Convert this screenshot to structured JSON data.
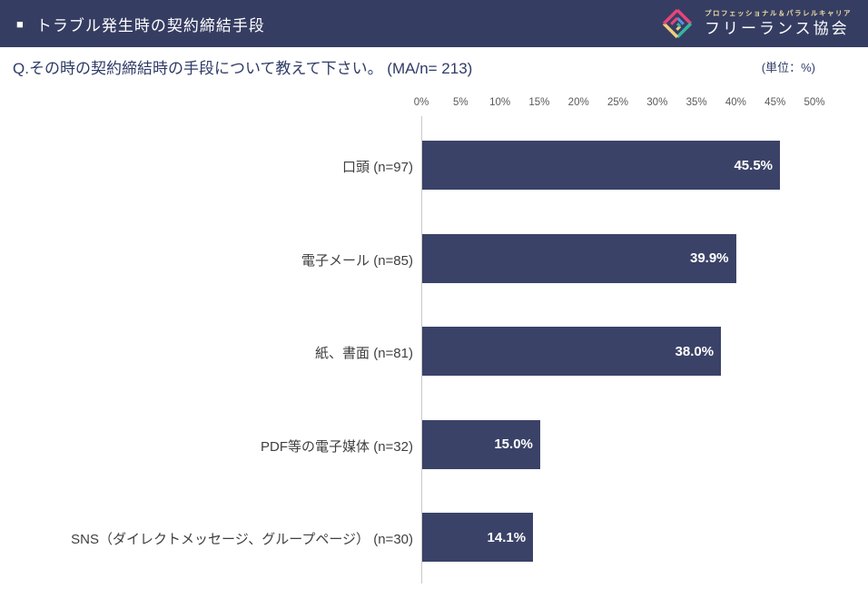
{
  "header": {
    "bullet": "■",
    "title": "トラブル発生時の契約締結手段",
    "logo": {
      "tagline": "プロフェッショナル＆パラレルキャリア",
      "name": "フリーランス協会"
    }
  },
  "question": {
    "text": "Q.その時の契約締結時の手段について教えて下さい。 (MA/n= 213)",
    "unit_note": "(単位：%)"
  },
  "colors": {
    "header_bg": "#363D62",
    "bar": "#3B4268",
    "question_text": "#2F3B67",
    "tick_text": "#595959",
    "category_text": "#3F3F3F",
    "value_text": "#FFFFFF",
    "axis_line": "#C9C9C9",
    "logo_pink": "#E8447A",
    "logo_teal": "#35B59E",
    "logo_blue": "#5B8FD9",
    "logo_yellow": "#EDD07C"
  },
  "chart_data": {
    "type": "bar",
    "orientation": "horizontal",
    "title": "トラブル発生時の契約締結手段",
    "categories": [
      "口頭 (n=97)",
      "電子メール (n=85)",
      "紙、書面 (n=81)",
      "PDF等の電子媒体 (n=32)",
      "SNS（ダイレクトメッセージ、グループページ） (n=30)"
    ],
    "values": [
      45.5,
      39.9,
      38.0,
      15.0,
      14.1
    ],
    "value_labels": [
      "45.5%",
      "39.9%",
      "38.0%",
      "15.0%",
      "14.1%"
    ],
    "xlim": [
      0,
      50
    ],
    "x_tick_step": 5,
    "x_tick_labels": [
      "0%",
      "5%",
      "10%",
      "15%",
      "20%",
      "25%",
      "30%",
      "35%",
      "40%",
      "45%",
      "50%"
    ],
    "xlabel": "",
    "ylabel": "",
    "grid": false,
    "legend": "none",
    "unit": "%"
  }
}
